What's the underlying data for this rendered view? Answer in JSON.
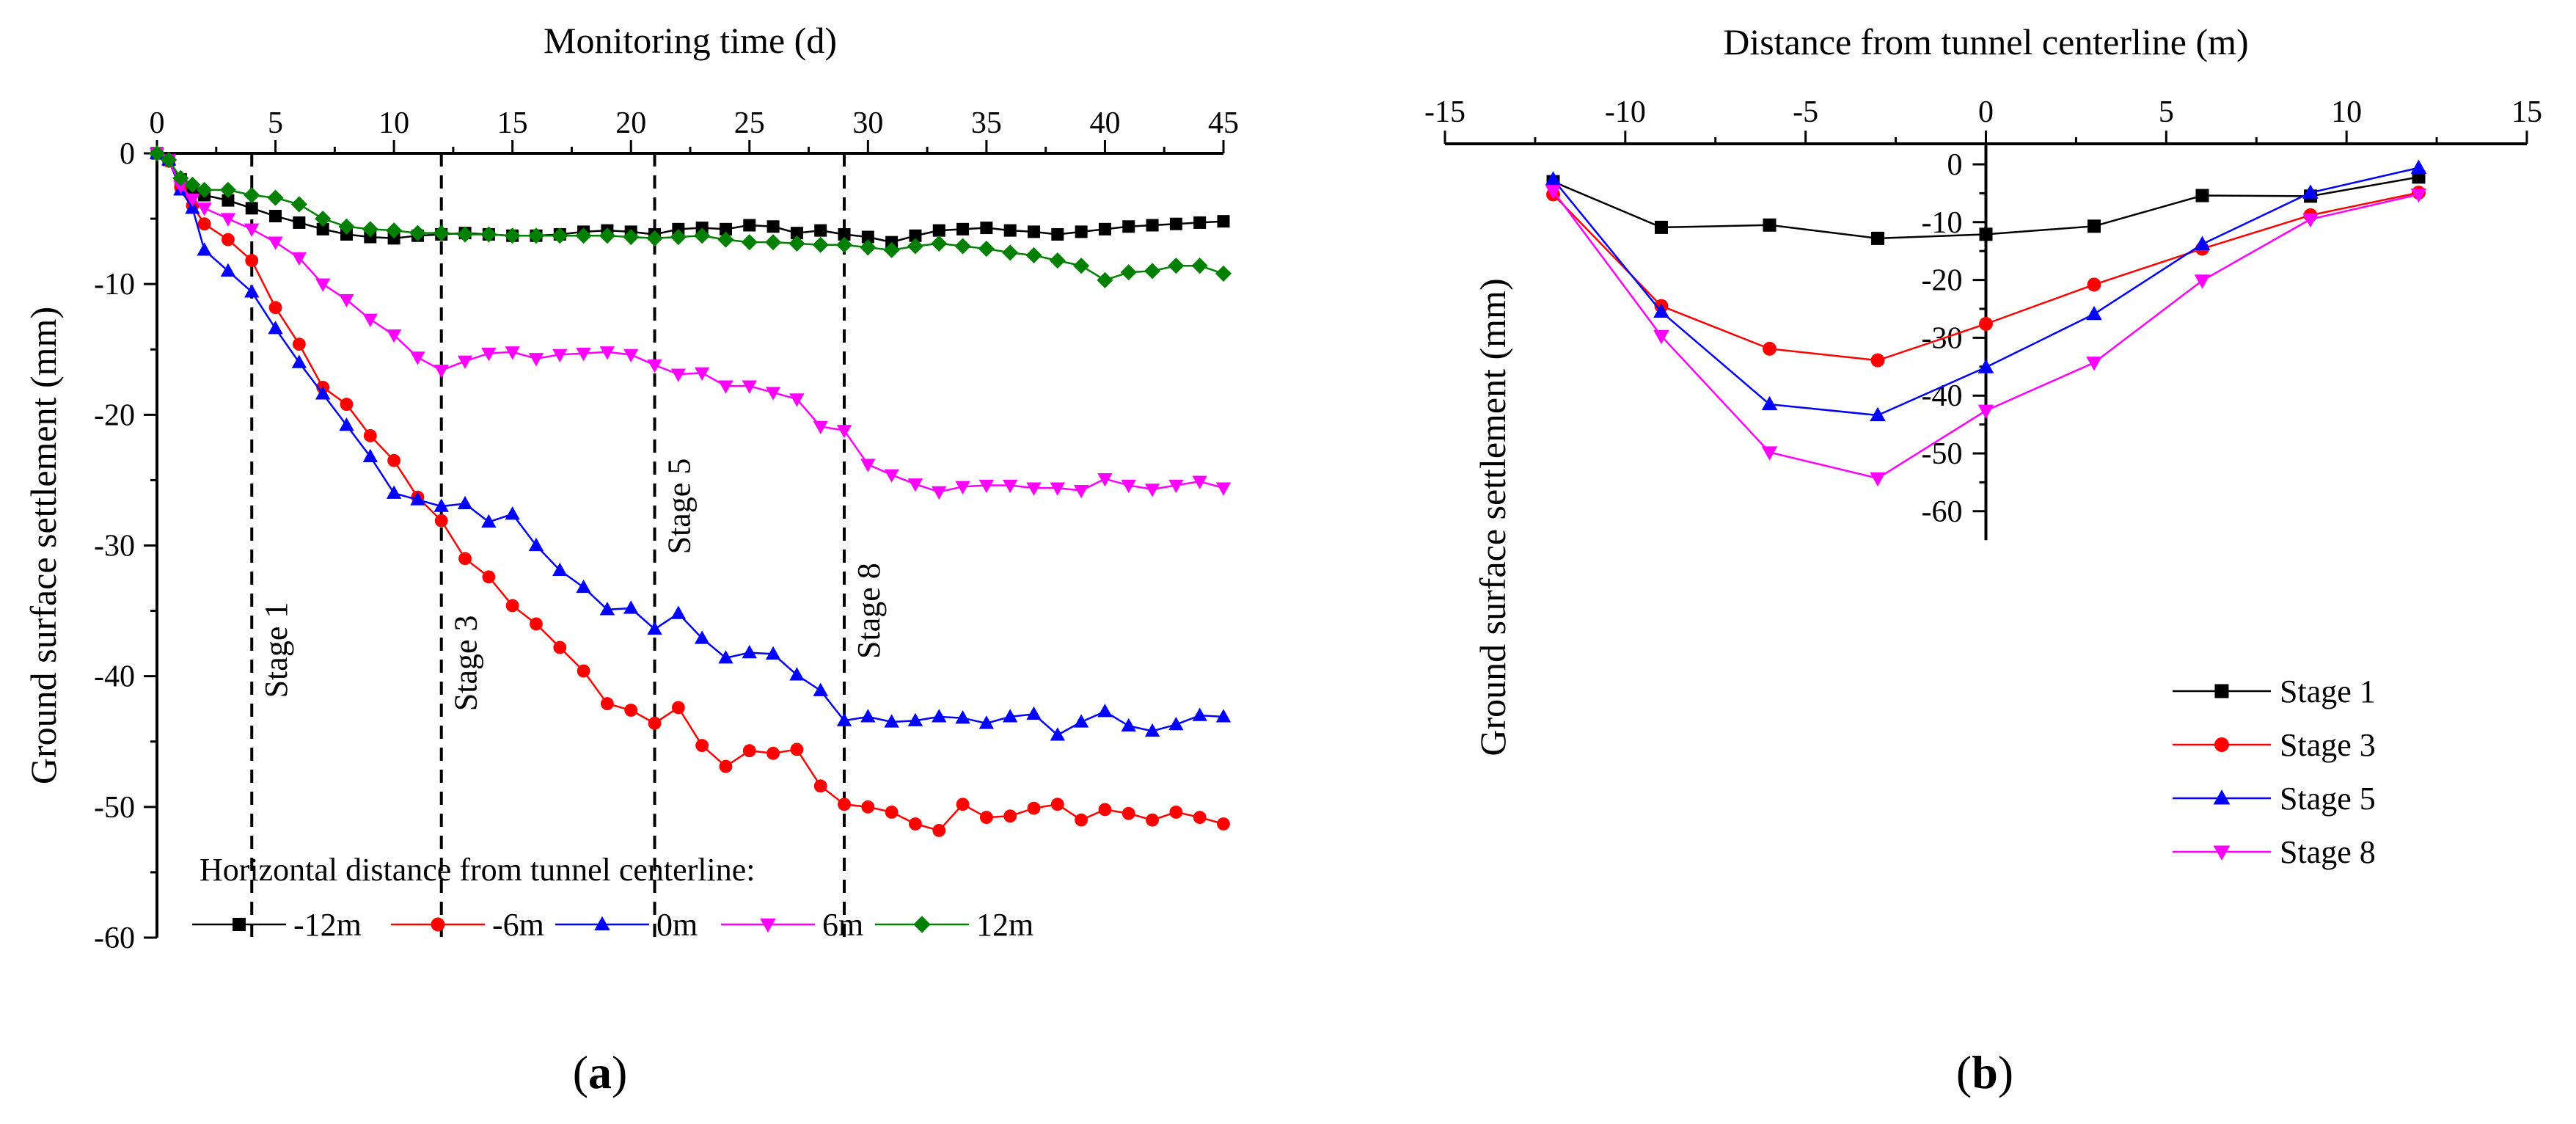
{
  "chart_data": [
    {
      "type": "line",
      "panel_label_parts": [
        "(",
        "a",
        ")"
      ],
      "xlabel": "Monitoring time (d)",
      "ylabel": "Ground surface settlement (mm)",
      "xlim": [
        0,
        45
      ],
      "ylim": [
        -60,
        0
      ],
      "xticks": [
        0,
        5,
        10,
        15,
        20,
        25,
        30,
        35,
        40,
        45
      ],
      "yticks": [
        0,
        -10,
        -20,
        -30,
        -40,
        -50,
        -60
      ],
      "x_axis_position": "top",
      "grid": false,
      "legend": {
        "title": "Horizontal distance from tunnel centerline:",
        "placement": "bottom",
        "entries": [
          "-12m",
          "-6m",
          "0m",
          "6m",
          "12m"
        ]
      },
      "annotations": [
        {
          "text": "Stage 1",
          "x": 4
        },
        {
          "text": "Stage 3",
          "x": 12
        },
        {
          "text": "Stage 5",
          "x": 21
        },
        {
          "text": "Stage 8",
          "x": 29
        }
      ],
      "x": [
        0,
        0.5,
        1,
        1.5,
        2,
        3,
        4,
        5,
        6,
        7,
        8,
        9,
        10,
        11,
        12,
        13,
        14,
        15,
        16,
        17,
        18,
        19,
        20,
        21,
        22,
        23,
        24,
        25,
        26,
        27,
        28,
        29,
        30,
        31,
        32,
        33,
        34,
        35,
        36,
        37,
        38,
        39,
        40,
        41,
        42,
        43,
        44,
        45
      ],
      "series": [
        {
          "name": "-12m",
          "color": "#000000",
          "marker": "square",
          "values": [
            0,
            -0.5,
            -2,
            -2.8,
            -3.2,
            -3.6,
            -4.2,
            -4.8,
            -5.3,
            -5.8,
            -6.2,
            -6.4,
            -6.5,
            -6.3,
            -6.2,
            -6.1,
            -6.2,
            -6.3,
            -6.3,
            -6.2,
            -6,
            -5.9,
            -6,
            -6.2,
            -5.8,
            -5.7,
            -5.8,
            -5.5,
            -5.6,
            -6.1,
            -5.9,
            -6.2,
            -6.4,
            -6.8,
            -6.3,
            -5.9,
            -5.8,
            -5.7,
            -5.9,
            -6,
            -6.2,
            -6,
            -5.8,
            -5.6,
            -5.5,
            -5.4,
            -5.3,
            -5.2
          ]
        },
        {
          "name": "-6m",
          "color": "#ff0000",
          "marker": "circle",
          "values": [
            0,
            -0.6,
            -2.6,
            -4,
            -5.4,
            -6.6,
            -8.2,
            -11.8,
            -14.6,
            -17.9,
            -19.2,
            -21.6,
            -23.5,
            -26.3,
            -28.1,
            -31,
            -32.4,
            -34.6,
            -36,
            -37.8,
            -39.6,
            -42.1,
            -42.6,
            -43.6,
            -42.4,
            -45.3,
            -46.9,
            -45.7,
            -45.9,
            -45.6,
            -48.4,
            -49.8,
            -50,
            -50.4,
            -51.3,
            -51.8,
            -49.8,
            -50.8,
            -50.7,
            -50.1,
            -49.8,
            -51,
            -50.2,
            -50.5,
            -51,
            -50.4,
            -50.8,
            -51.3
          ]
        },
        {
          "name": "0m",
          "color": "#0000ff",
          "marker": "triangle-up",
          "values": [
            0,
            -0.5,
            -2.8,
            -4.2,
            -7.4,
            -9,
            -10.6,
            -13.4,
            -16,
            -18.4,
            -20.8,
            -23.2,
            -26,
            -26.5,
            -27,
            -26.8,
            -28.2,
            -27.6,
            -30,
            -31.9,
            -33.2,
            -34.9,
            -34.8,
            -36.4,
            -35.2,
            -37.1,
            -38.6,
            -38.2,
            -38.3,
            -39.9,
            -41.1,
            -43.4,
            -43.1,
            -43.5,
            -43.4,
            -43.1,
            -43.2,
            -43.6,
            -43.1,
            -42.9,
            -44.5,
            -43.5,
            -42.7,
            -43.8,
            -44.2,
            -43.7,
            -43,
            -43.1
          ]
        },
        {
          "name": "6m",
          "color": "#ff00ff",
          "marker": "triangle-down",
          "values": [
            0,
            -0.5,
            -2.5,
            -3.5,
            -4.2,
            -5,
            -5.8,
            -6.8,
            -8,
            -10,
            -11.2,
            -12.7,
            -13.9,
            -15.6,
            -16.6,
            -15.9,
            -15.3,
            -15.2,
            -15.7,
            -15.4,
            -15.3,
            -15.2,
            -15.4,
            -16.2,
            -16.9,
            -16.8,
            -17.8,
            -17.8,
            -18.3,
            -18.8,
            -20.9,
            -21.2,
            -23.8,
            -24.6,
            -25.3,
            -25.9,
            -25.5,
            -25.4,
            -25.4,
            -25.6,
            -25.6,
            -25.8,
            -24.9,
            -25.4,
            -25.7,
            -25.4,
            -25.1,
            -25.6
          ]
        },
        {
          "name": "12m",
          "color": "#008000",
          "marker": "diamond",
          "values": [
            0,
            -0.5,
            -1.9,
            -2.4,
            -2.8,
            -2.8,
            -3.2,
            -3.4,
            -3.9,
            -5,
            -5.6,
            -5.8,
            -5.9,
            -6.1,
            -6.1,
            -6.2,
            -6.2,
            -6.3,
            -6.3,
            -6.3,
            -6.3,
            -6.3,
            -6.4,
            -6.5,
            -6.4,
            -6.3,
            -6.6,
            -6.8,
            -6.8,
            -6.9,
            -7,
            -7,
            -7.2,
            -7.4,
            -7.1,
            -6.9,
            -7.1,
            -7.3,
            -7.6,
            -7.8,
            -8.2,
            -8.6,
            -9.7,
            -9.1,
            -9,
            -8.6,
            -8.6,
            -9.2
          ]
        }
      ]
    },
    {
      "type": "line",
      "panel_label_parts": [
        "(",
        "b",
        ")"
      ],
      "xlabel": "Distance from tunnel centerline (m)",
      "ylabel": "Ground surface settlement (mm)",
      "xlim": [
        -15,
        15
      ],
      "ylim": [
        -65,
        2
      ],
      "xticks": [
        -15,
        -10,
        -5,
        0,
        5,
        10,
        15
      ],
      "yticks": [
        0,
        -10,
        -20,
        -30,
        -40,
        -50,
        -60
      ],
      "ytick_labels": [
        "0",
        "-10",
        "-20",
        "-30",
        "-40",
        "-50",
        "-60"
      ],
      "x_axis_position": "top",
      "y_axis_position": "x=0",
      "grid": false,
      "legend": {
        "placement": "bottom-right",
        "entries": [
          "Stage 1",
          "Stage 3",
          "Stage 5",
          "Stage 8"
        ]
      },
      "x": [
        -12,
        -9,
        -6,
        -3,
        0,
        3,
        6,
        9,
        12
      ],
      "series": [
        {
          "name": "Stage 1",
          "color": "#000000",
          "marker": "square",
          "values": [
            -3,
            -10.9,
            -10.5,
            -12.8,
            -12.1,
            -10.7,
            -5.4,
            -5.5,
            -2.2
          ]
        },
        {
          "name": "Stage 3",
          "color": "#ff0000",
          "marker": "circle",
          "values": [
            -5.2,
            -24.5,
            -31.9,
            -33.9,
            -27.6,
            -20.8,
            -14.6,
            -8.8,
            -4.9
          ]
        },
        {
          "name": "Stage 5",
          "color": "#0000ff",
          "marker": "triangle-up",
          "values": [
            -2.6,
            -25.5,
            -41.5,
            -43.4,
            -35.1,
            -25.9,
            -13.8,
            -4.9,
            -0.6
          ]
        },
        {
          "name": "Stage 8",
          "color": "#ff00ff",
          "marker": "triangle-down",
          "values": [
            -4.6,
            -29.7,
            -49.8,
            -54.3,
            -42.6,
            -34.3,
            -20.1,
            -9.5,
            -5.2
          ]
        }
      ]
    }
  ]
}
